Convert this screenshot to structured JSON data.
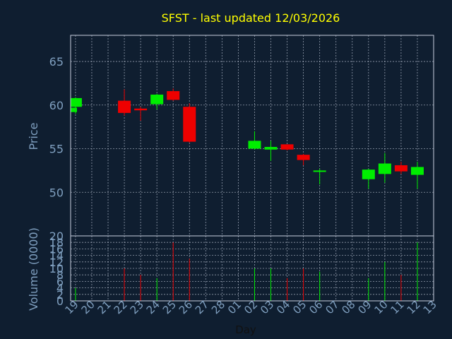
{
  "chart_data": {
    "type": "candlestick",
    "title": "SFST - last updated 12/03/2026",
    "price_panel": {
      "ylabel": "Price",
      "ylim": [
        45,
        68
      ],
      "yticks": [
        50,
        55,
        60,
        65
      ]
    },
    "volume_panel": {
      "ylabel": "Volume (0000)",
      "ylim": [
        0,
        20
      ],
      "yticks": [
        0,
        2,
        4,
        6,
        8,
        10,
        12,
        14,
        16,
        18,
        20
      ]
    },
    "xlabel": "Day",
    "x_ticks": [
      "19",
      "20",
      "21",
      "22",
      "23",
      "24",
      "25",
      "26",
      "27",
      "28",
      "01",
      "02",
      "03",
      "04",
      "05",
      "06",
      "07",
      "08",
      "09",
      "10",
      "11",
      "12",
      "13"
    ],
    "x_first_index": -0.3,
    "x_last_index": 22,
    "grid": true,
    "colors": {
      "background": "#0f1e30",
      "up": "#00ee00",
      "down": "#ee0000",
      "title": "#ffff00",
      "axis_text": "#7f9fbf",
      "frame": "#c8d0e0",
      "grid": "#c8d0e0"
    },
    "candles": [
      {
        "x": -0.3,
        "open": 59.2,
        "high": 59.8,
        "low": 59.2,
        "close": 59.7,
        "volume": 0
      },
      {
        "x": 0,
        "open": 59.8,
        "high": 60.9,
        "low": 59.0,
        "close": 60.8,
        "volume": 4
      },
      {
        "x": 3,
        "open": 60.5,
        "high": 61.8,
        "low": 58.8,
        "close": 59.1,
        "volume": 10
      },
      {
        "x": 4,
        "open": 59.6,
        "high": 59.8,
        "low": 58.2,
        "close": 59.4,
        "volume": 8
      },
      {
        "x": 5,
        "open": 60.1,
        "high": 61.3,
        "low": 59.5,
        "close": 61.2,
        "volume": 7
      },
      {
        "x": 6,
        "open": 61.6,
        "high": 61.9,
        "low": 60.5,
        "close": 60.6,
        "volume": 18
      },
      {
        "x": 7,
        "open": 59.8,
        "high": 60.2,
        "low": 55.7,
        "close": 55.8,
        "volume": 13
      },
      {
        "x": 11,
        "open": 55.0,
        "high": 57.0,
        "low": 54.9,
        "close": 55.9,
        "volume": 10
      },
      {
        "x": 12,
        "open": 54.9,
        "high": 55.9,
        "low": 53.6,
        "close": 55.2,
        "volume": 10
      },
      {
        "x": 13,
        "open": 55.5,
        "high": 55.5,
        "low": 54.8,
        "close": 54.9,
        "volume": 7
      },
      {
        "x": 14,
        "open": 54.3,
        "high": 54.4,
        "low": 53.1,
        "close": 53.7,
        "volume": 10
      },
      {
        "x": 15,
        "open": 52.4,
        "high": 52.7,
        "low": 50.9,
        "close": 52.5,
        "volume": 9
      },
      {
        "x": 18,
        "open": 51.5,
        "high": 52.7,
        "low": 50.4,
        "close": 52.6,
        "volume": 7
      },
      {
        "x": 19,
        "open": 52.1,
        "high": 54.5,
        "low": 51.1,
        "close": 53.3,
        "volume": 12
      },
      {
        "x": 20,
        "open": 53.1,
        "high": 53.5,
        "low": 52.1,
        "close": 52.4,
        "volume": 8
      },
      {
        "x": 21,
        "open": 52.0,
        "high": 53.5,
        "low": 50.4,
        "close": 52.9,
        "volume": 18
      }
    ]
  }
}
